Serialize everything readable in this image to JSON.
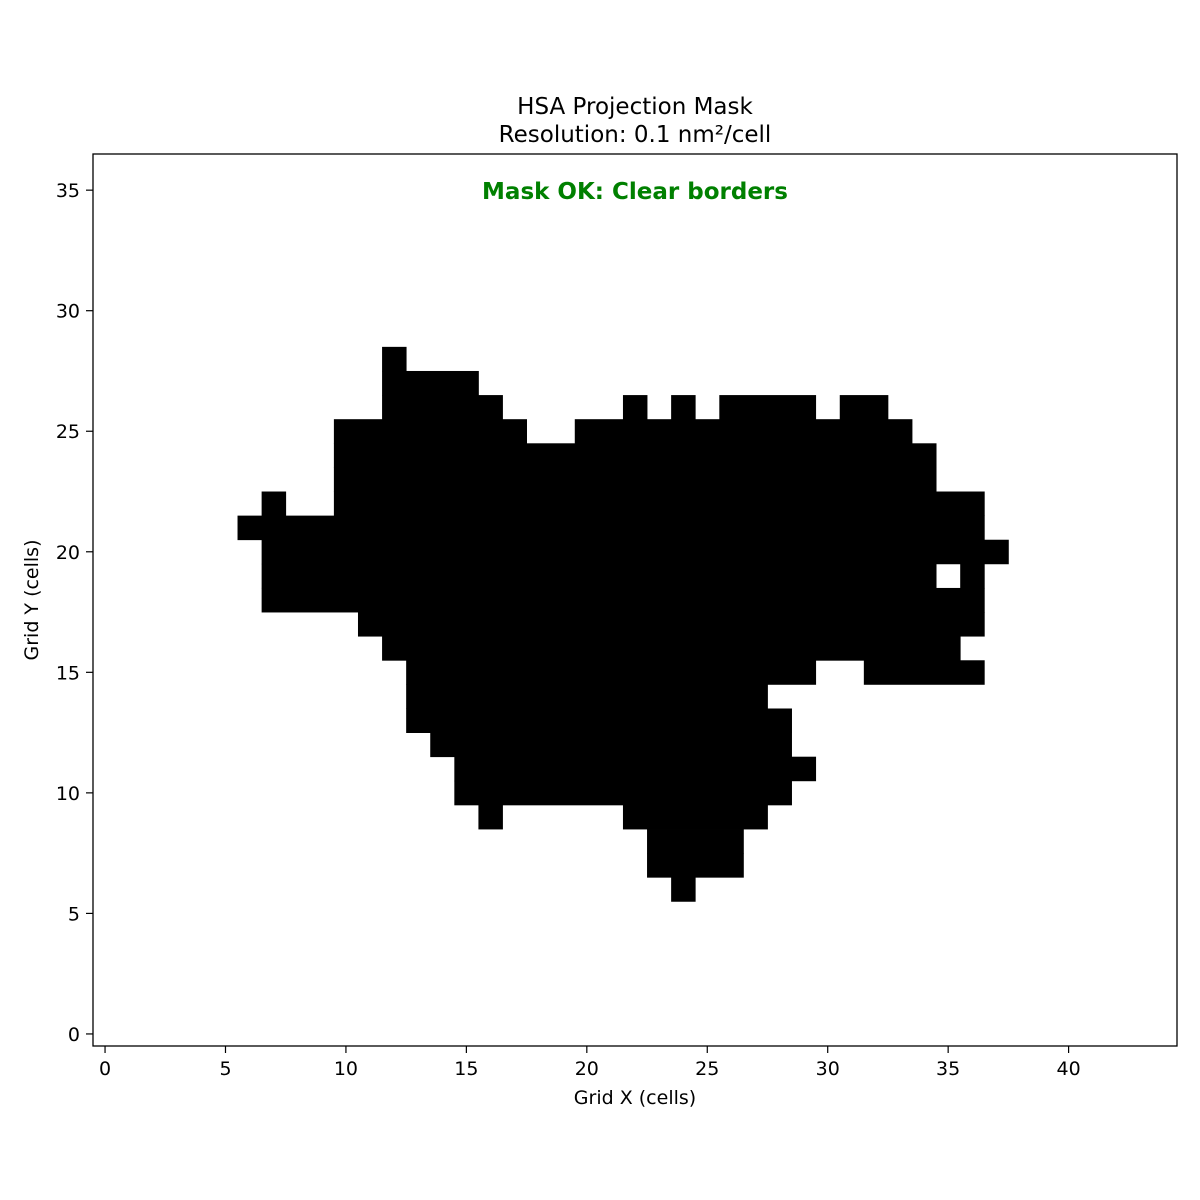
{
  "chart_data": {
    "type": "heatmap",
    "title": "HSA Projection Mask",
    "subtitle": "Resolution: 0.1 nm²/cell",
    "xlabel": "Grid X (cells)",
    "ylabel": "Grid Y (cells)",
    "xlim": [
      -0.5,
      44.5
    ],
    "ylim": [
      -0.5,
      36.5
    ],
    "x_ticks": [
      0,
      5,
      10,
      15,
      20,
      25,
      30,
      35,
      40
    ],
    "y_ticks": [
      0,
      5,
      10,
      15,
      20,
      25,
      30,
      35
    ],
    "annotation": "Mask OK: Clear borders",
    "annotation_color": "#008000",
    "mask_color": "#000000",
    "background_color": "#ffffff",
    "grid": false,
    "mask_rows": [
      {
        "y": 28,
        "cells": [
          [
            12,
            12
          ]
        ]
      },
      {
        "y": 27,
        "cells": [
          [
            12,
            15
          ]
        ]
      },
      {
        "y": 26,
        "cells": [
          [
            12,
            16
          ],
          [
            22,
            22
          ],
          [
            24,
            24
          ],
          [
            26,
            29
          ],
          [
            31,
            32
          ]
        ]
      },
      {
        "y": 25,
        "cells": [
          [
            10,
            17
          ],
          [
            20,
            33
          ]
        ]
      },
      {
        "y": 24,
        "cells": [
          [
            10,
            34
          ]
        ]
      },
      {
        "y": 23,
        "cells": [
          [
            10,
            34
          ]
        ]
      },
      {
        "y": 22,
        "cells": [
          [
            7,
            7
          ],
          [
            10,
            36
          ]
        ]
      },
      {
        "y": 21,
        "cells": [
          [
            6,
            36
          ]
        ]
      },
      {
        "y": 20,
        "cells": [
          [
            7,
            37
          ]
        ]
      },
      {
        "y": 19,
        "cells": [
          [
            7,
            34
          ],
          [
            36,
            36
          ]
        ]
      },
      {
        "y": 18,
        "cells": [
          [
            7,
            36
          ]
        ]
      },
      {
        "y": 17,
        "cells": [
          [
            11,
            36
          ]
        ]
      },
      {
        "y": 16,
        "cells": [
          [
            12,
            35
          ]
        ]
      },
      {
        "y": 15,
        "cells": [
          [
            13,
            29
          ],
          [
            32,
            36
          ]
        ]
      },
      {
        "y": 14,
        "cells": [
          [
            13,
            27
          ]
        ]
      },
      {
        "y": 13,
        "cells": [
          [
            13,
            28
          ]
        ]
      },
      {
        "y": 12,
        "cells": [
          [
            14,
            28
          ]
        ]
      },
      {
        "y": 11,
        "cells": [
          [
            15,
            29
          ]
        ]
      },
      {
        "y": 10,
        "cells": [
          [
            15,
            28
          ]
        ]
      },
      {
        "y": 9,
        "cells": [
          [
            16,
            16
          ],
          [
            22,
            27
          ]
        ]
      },
      {
        "y": 8,
        "cells": [
          [
            23,
            26
          ]
        ]
      },
      {
        "y": 7,
        "cells": [
          [
            23,
            26
          ]
        ]
      },
      {
        "y": 6,
        "cells": [
          [
            24,
            24
          ]
        ]
      }
    ]
  }
}
